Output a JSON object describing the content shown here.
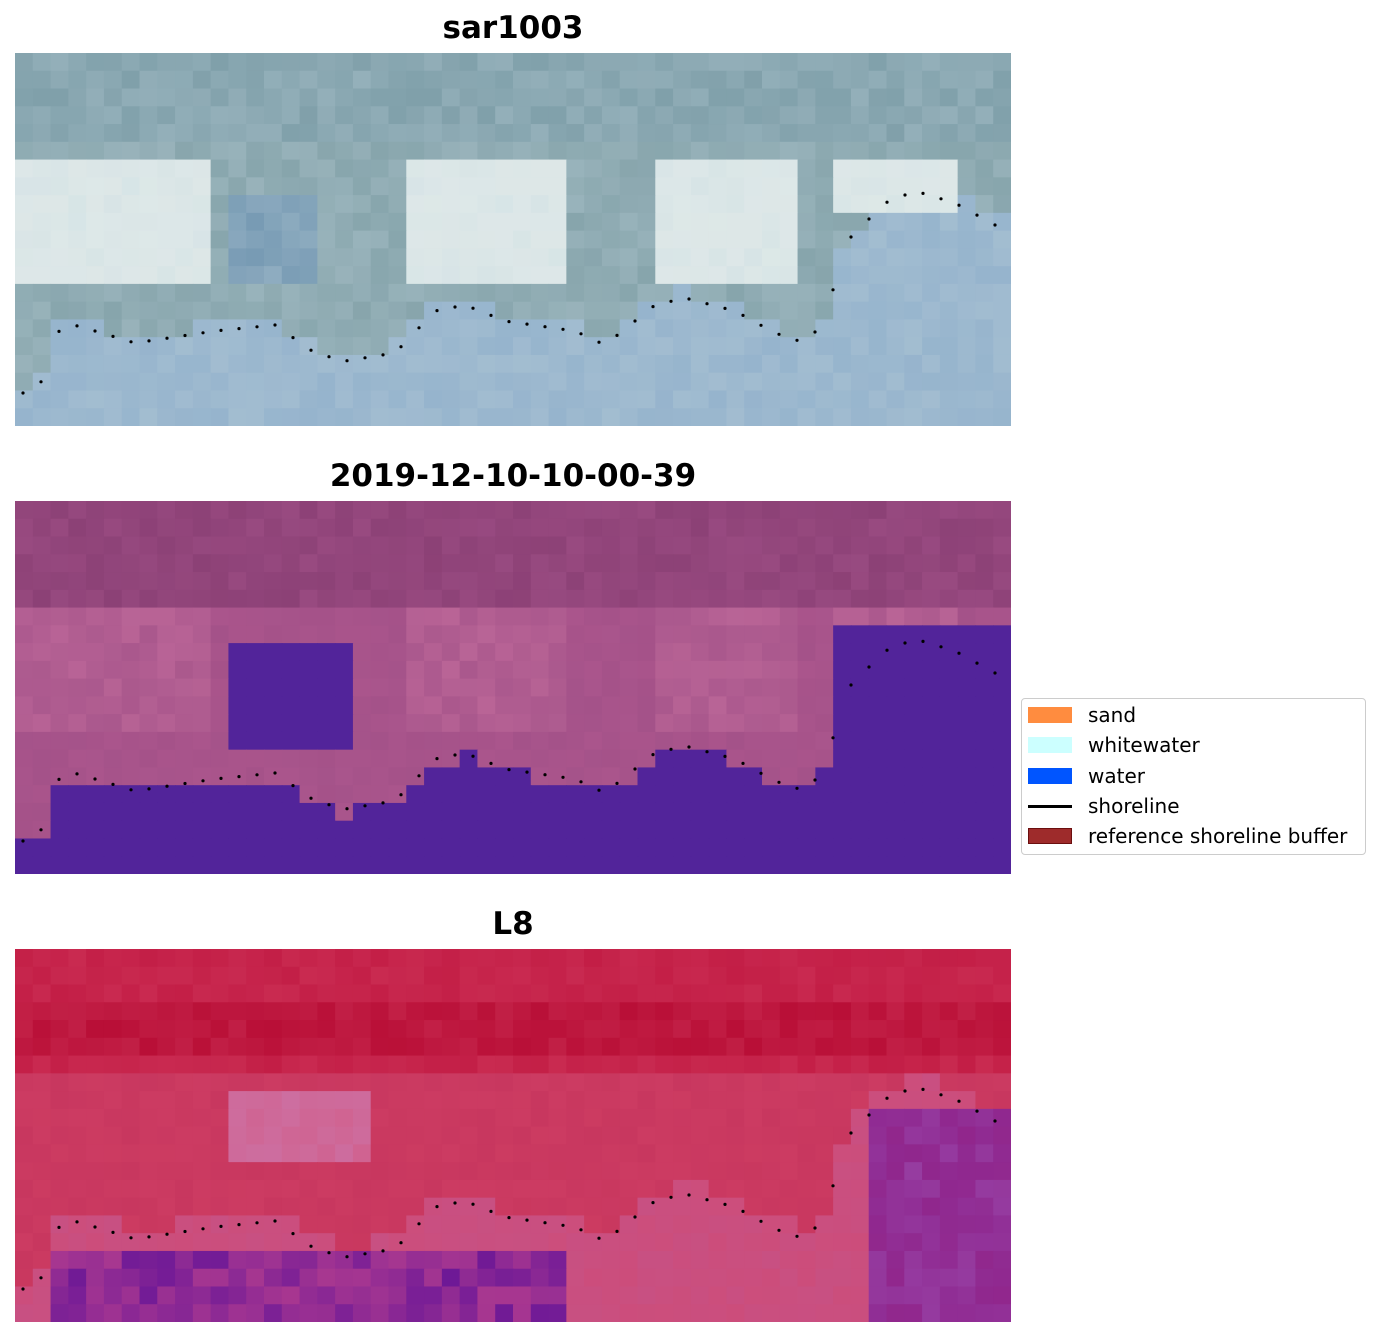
{
  "panels": [
    {
      "title": "sar1003",
      "style": "rgb"
    },
    {
      "title": "2019-12-10-10-00-39",
      "style": "classified"
    },
    {
      "title": "L8",
      "style": "index"
    }
  ],
  "legend": {
    "items": [
      {
        "label": "sand",
        "kind": "patch",
        "color": "#ff8c3f",
        "edge": "#ff8c3f"
      },
      {
        "label": "whitewater",
        "kind": "patch",
        "color": "#ccffff",
        "edge": "#ccffff"
      },
      {
        "label": "water",
        "kind": "patch",
        "color": "#0055ff",
        "edge": "#0055ff"
      },
      {
        "label": "shoreline",
        "kind": "line",
        "color": "#000000"
      },
      {
        "label": "reference shoreline buffer",
        "kind": "patch",
        "color": "#9e2b2b",
        "edge": "#6b0f0f"
      }
    ]
  },
  "colors": {
    "water_class": "#52249a",
    "shoreline_dots": "#000000"
  }
}
